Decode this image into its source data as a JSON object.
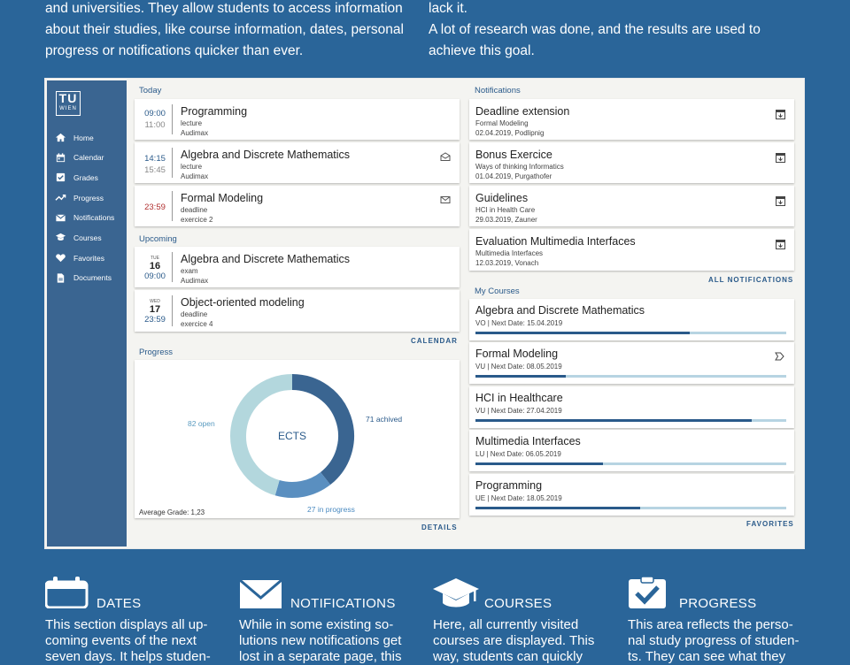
{
  "intro": {
    "left": [
      "and universities. They allow students to access information",
      "about their studies, like course information, dates, personal",
      "progress or notifications quicker than ever."
    ],
    "right": [
      "lack it.",
      "A lot of research was done, and the results are used to",
      "achieve this goal."
    ]
  },
  "logo": {
    "tu": "TU",
    "wien": "WIEN"
  },
  "nav": [
    {
      "label": "Home",
      "icon": "home-icon"
    },
    {
      "label": "Calendar",
      "icon": "calendar-icon"
    },
    {
      "label": "Grades",
      "icon": "checkbox-icon"
    },
    {
      "label": "Progress",
      "icon": "trend-icon"
    },
    {
      "label": "Notifications",
      "icon": "mail-icon"
    },
    {
      "label": "Courses",
      "icon": "graduation-cap-icon"
    },
    {
      "label": "Favorites",
      "icon": "heart-icon"
    },
    {
      "label": "Documents",
      "icon": "document-icon"
    }
  ],
  "today": {
    "title": "Today",
    "events": [
      {
        "start": "09:00",
        "end": "11:00",
        "title": "Programming",
        "type": "lecture",
        "room": "Audimax",
        "icon": ""
      },
      {
        "start": "14:15",
        "end": "15:45",
        "title": "Algebra and Discrete Mathematics",
        "type": "lecture",
        "room": "Audimax",
        "icon": "mail-open-icon"
      },
      {
        "start": "23:59",
        "end": "",
        "title": "Formal Modeling",
        "type": "deadline",
        "room": "exercice 2",
        "icon": "mail-icon"
      }
    ]
  },
  "upcoming": {
    "title": "Upcoming",
    "events": [
      {
        "weekday": "TUE",
        "day": "16",
        "time": "09:00",
        "title": "Algebra and Discrete Mathematics",
        "type": "exam",
        "room": "Audimax"
      },
      {
        "weekday": "WED",
        "day": "17",
        "time": "23:59",
        "title": "Object-oriented modeling",
        "type": "deadline",
        "room": "exercice 4"
      }
    ],
    "link": "CALENDAR"
  },
  "progress": {
    "title": "Progress",
    "center": "ECTS",
    "open_label": "82 open",
    "achieved_label": "71 achived",
    "in_progress_label": "27 in progress",
    "average": "Average Grade: 1,23",
    "link": "DETAILS",
    "segments": [
      {
        "name": "achieved",
        "value": 71,
        "color": "#3a6591"
      },
      {
        "name": "in progress",
        "value": 27,
        "color": "#5a8fc0"
      },
      {
        "name": "open",
        "value": 82,
        "color": "#b3d7dd"
      }
    ]
  },
  "notifications": {
    "title": "Notifications",
    "items": [
      {
        "title": "Deadline extension",
        "line1": "Formal Modeling",
        "line2": "02.04.2019, Podlipnig"
      },
      {
        "title": "Bonus Exercice",
        "line1": "Ways of thinking Informatics",
        "line2": "01.04.2019, Purgathofer"
      },
      {
        "title": "Guidelines",
        "line1": "HCI in Health Care",
        "line2": "29.03.2019, Zauner"
      },
      {
        "title": "Evaluation Multimedia Interfaces",
        "line1": "Multimedia Interfaces",
        "line2": "12.03.2019, Vonach"
      }
    ],
    "link": "ALL NOTIFICATIONS"
  },
  "courses": {
    "title": "My Courses",
    "items": [
      {
        "title": "Algebra and Discrete Mathematics",
        "sub": "VO  |  Next Date: 15.04.2019",
        "progress": 0.69,
        "bookmark": false
      },
      {
        "title": "Formal Modeling",
        "sub": "VU  |  Next Date: 08.05.2019",
        "progress": 0.29,
        "bookmark": true
      },
      {
        "title": "HCI in Healthcare",
        "sub": "VU  |  Next Date: 27.04.2019",
        "progress": 0.89,
        "bookmark": false
      },
      {
        "title": "Multimedia Interfaces",
        "sub": "LU  |  Next Date: 06.05.2019",
        "progress": 0.41,
        "bookmark": false
      },
      {
        "title": "Programming",
        "sub": "UE  |  Next Date: 18.05.2019",
        "progress": 0.53,
        "bookmark": false
      }
    ],
    "link": "FAVORITES"
  },
  "features": [
    {
      "heading": "DATES",
      "icon": "calendar-icon",
      "lines": [
        "This section displays all up-",
        "coming events of the next",
        "seven days. It helps studen-"
      ]
    },
    {
      "heading": "NOTIFICATIONS",
      "icon": "envelope-icon",
      "lines": [
        "While in some existing so-",
        "lutions new notifications get",
        "lost in a separate page, this"
      ]
    },
    {
      "heading": "COURSES",
      "icon": "graduation-cap-icon",
      "lines": [
        "Here, all currently visited",
        "courses are displayed. This",
        "way, students can quickly"
      ]
    },
    {
      "heading": "PROGRESS",
      "icon": "clipboard-check-icon",
      "lines": [
        "This area reflects the perso-",
        "nal study progress of studen-",
        "ts. They can see what they"
      ]
    }
  ]
}
